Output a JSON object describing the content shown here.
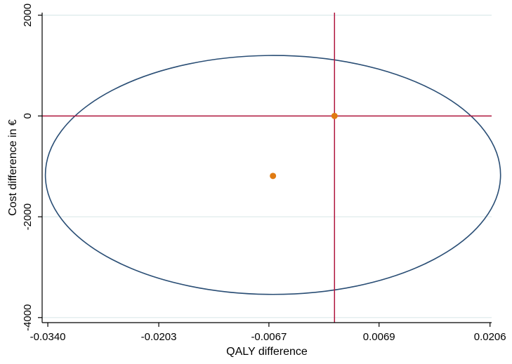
{
  "chart_data": {
    "type": "scatter",
    "title": "",
    "xlabel": "QALY difference",
    "ylabel": "Cost difference in €",
    "xlim": [
      -0.0347,
      0.0208
    ],
    "ylim": [
      -4100,
      2050
    ],
    "xticks": [
      -0.034,
      -0.0203,
      -0.0067,
      0.0069,
      0.0206
    ],
    "xtick_labels": [
      "-0.0340",
      "-0.0203",
      "-0.0067",
      "0.0069",
      "0.0206"
    ],
    "yticks": [
      2000,
      0,
      -2000,
      -4000
    ],
    "ytick_labels": [
      "2000",
      "0",
      "-2000",
      "-4000"
    ],
    "grid": "horizontal",
    "points": [
      {
        "x": -0.0062,
        "y": -1190
      },
      {
        "x": 0.0014,
        "y": 0
      }
    ],
    "point_color": "#e07b12",
    "ellipse": {
      "center": {
        "x": -0.0062,
        "y": -1170
      },
      "x_semi_axis": 0.0281,
      "y_semi_axis": 2370,
      "color": "#2a4e75"
    },
    "reference_lines": {
      "horizontal_y": 0,
      "vertical_x": 0.0014,
      "color": "#b0153d"
    },
    "grid_color": "#dce9ea"
  }
}
